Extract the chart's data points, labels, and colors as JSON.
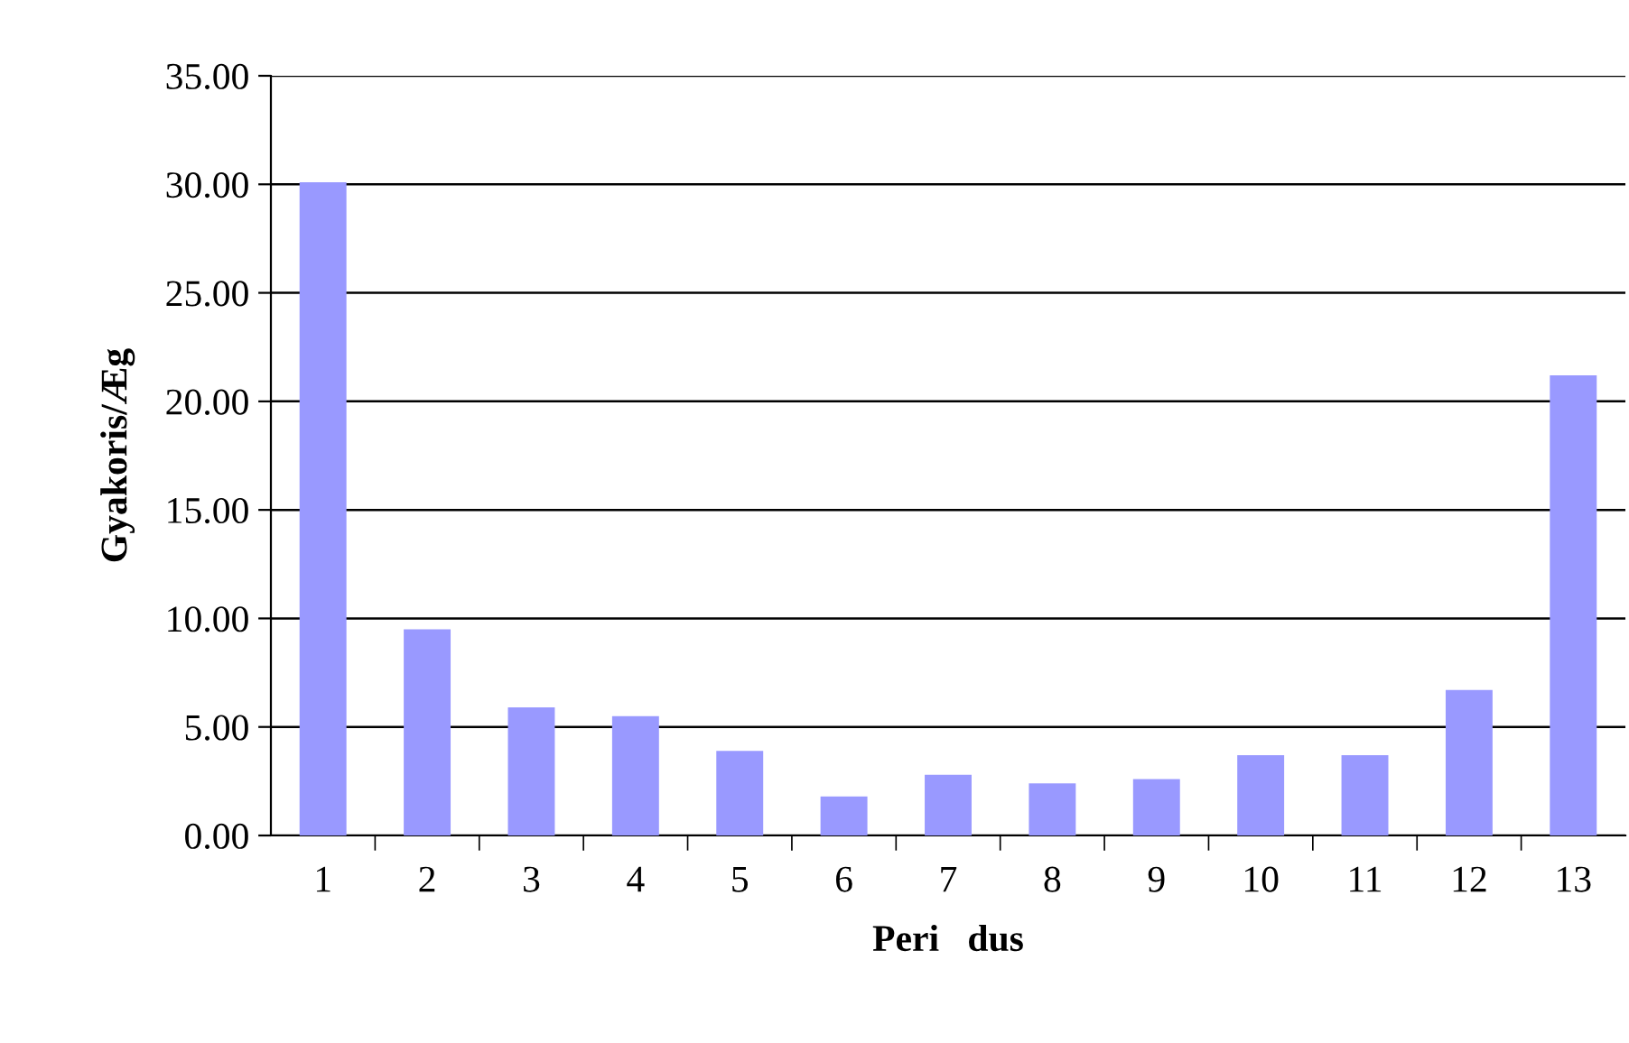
{
  "chart_data": {
    "type": "bar",
    "xlabel": "Peri   dus",
    "ylabel": "Gyakoris/Æg",
    "categories": [
      "1",
      "2",
      "3",
      "4",
      "5",
      "6",
      "7",
      "8",
      "9",
      "10",
      "11",
      "12",
      "13"
    ],
    "values": [
      30.1,
      9.5,
      5.9,
      5.5,
      3.9,
      1.8,
      2.8,
      2.4,
      2.6,
      3.7,
      3.7,
      6.7,
      21.2
    ],
    "color": "#9999ff",
    "ylim": [
      0,
      35
    ],
    "yticks": [
      {
        "value": 0,
        "label": "0.00"
      },
      {
        "value": 5,
        "label": "5.00"
      },
      {
        "value": 10,
        "label": "10.00"
      },
      {
        "value": 15,
        "label": "15.00"
      },
      {
        "value": 20,
        "label": "20.00"
      },
      {
        "value": 25,
        "label": "25.00"
      },
      {
        "value": 30,
        "label": "30.00"
      },
      {
        "value": 35,
        "label": "35.00"
      }
    ],
    "grid": "y",
    "legend": false
  }
}
